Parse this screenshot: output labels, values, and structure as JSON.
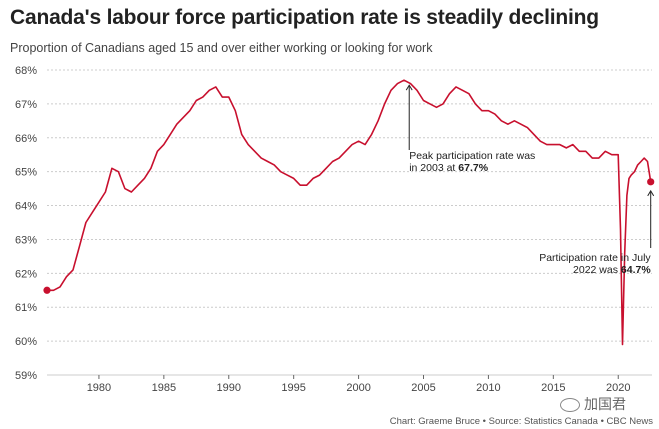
{
  "title": "Canada's labour force participation rate is steadily declining",
  "subtitle": "Proportion of Canadians aged 15 and over either working or looking for work",
  "credit": "Chart: Graeme Bruce • Source: Statistics Canada • CBC News",
  "watermark": "加国君",
  "colors": {
    "line": "#c8102e",
    "grid": "#cccccc",
    "text": "#222222"
  },
  "chart_data": {
    "type": "line",
    "title": "Canada's labour force participation rate is steadily declining",
    "subtitle": "Proportion of Canadians aged 15 and over either working or looking for work",
    "xlabel": "",
    "ylabel": "",
    "xlim": [
      1976,
      2022.6
    ],
    "ylim": [
      59,
      68
    ],
    "grid": "horizontal dashed",
    "x_ticks": [
      "1980",
      "1985",
      "1990",
      "1995",
      "2000",
      "2005",
      "2010",
      "2015",
      "2020"
    ],
    "y_ticks": [
      "59%",
      "60%",
      "61%",
      "62%",
      "63%",
      "64%",
      "65%",
      "66%",
      "67%",
      "68%"
    ],
    "series": [
      {
        "name": "",
        "color": "#c8102e",
        "x": [
          1976.0,
          1976.5,
          1977.0,
          1977.5,
          1978.0,
          1978.5,
          1979.0,
          1979.5,
          1980.0,
          1980.5,
          1981.0,
          1981.5,
          1982.0,
          1982.5,
          1983.0,
          1983.5,
          1984.0,
          1984.5,
          1985.0,
          1985.5,
          1986.0,
          1986.5,
          1987.0,
          1987.5,
          1988.0,
          1988.5,
          1989.0,
          1989.5,
          1990.0,
          1990.5,
          1991.0,
          1991.5,
          1992.0,
          1992.5,
          1993.0,
          1993.5,
          1994.0,
          1994.5,
          1995.0,
          1995.5,
          1996.0,
          1996.5,
          1997.0,
          1997.5,
          1998.0,
          1998.5,
          1999.0,
          1999.5,
          2000.0,
          2000.5,
          2001.0,
          2001.5,
          2002.0,
          2002.5,
          2003.0,
          2003.5,
          2004.0,
          2004.5,
          2005.0,
          2005.5,
          2006.0,
          2006.5,
          2007.0,
          2007.5,
          2008.0,
          2008.5,
          2009.0,
          2009.5,
          2010.0,
          2010.5,
          2011.0,
          2011.5,
          2012.0,
          2012.5,
          2013.0,
          2013.5,
          2014.0,
          2014.5,
          2015.0,
          2015.5,
          2016.0,
          2016.5,
          2017.0,
          2017.5,
          2018.0,
          2018.5,
          2019.0,
          2019.5,
          2020.0,
          2020.17,
          2020.33,
          2020.5,
          2020.67,
          2020.83,
          2021.0,
          2021.25,
          2021.5,
          2021.75,
          2022.0,
          2022.25,
          2022.5
        ],
        "y": [
          61.5,
          61.5,
          61.6,
          61.9,
          62.1,
          62.8,
          63.5,
          63.8,
          64.1,
          64.4,
          65.1,
          65.0,
          64.5,
          64.4,
          64.6,
          64.8,
          65.1,
          65.6,
          65.8,
          66.1,
          66.4,
          66.6,
          66.8,
          67.1,
          67.2,
          67.4,
          67.5,
          67.2,
          67.2,
          66.8,
          66.1,
          65.8,
          65.6,
          65.4,
          65.3,
          65.2,
          65.0,
          64.9,
          64.8,
          64.6,
          64.6,
          64.8,
          64.9,
          65.1,
          65.3,
          65.4,
          65.6,
          65.8,
          65.9,
          65.8,
          66.1,
          66.5,
          67.0,
          67.4,
          67.6,
          67.7,
          67.6,
          67.4,
          67.1,
          67.0,
          66.9,
          67.0,
          67.3,
          67.5,
          67.4,
          67.3,
          67.0,
          66.8,
          66.8,
          66.7,
          66.5,
          66.4,
          66.5,
          66.4,
          66.3,
          66.1,
          65.9,
          65.8,
          65.8,
          65.8,
          65.7,
          65.8,
          65.6,
          65.6,
          65.4,
          65.4,
          65.6,
          65.5,
          65.5,
          63.3,
          59.9,
          62.6,
          64.3,
          64.8,
          64.9,
          65.0,
          65.2,
          65.3,
          65.4,
          65.3,
          64.7
        ]
      }
    ],
    "annotations": [
      {
        "text_1": "Peak participation rate was",
        "text_2": "in 2003 at ",
        "value": "67.7%",
        "x": 2003.9,
        "y": 67.7
      },
      {
        "text_1": "Participation rate in July",
        "text_2": "2022 was ",
        "value": "64.7%",
        "x": 2022.5,
        "y": 64.7
      }
    ],
    "markers": [
      {
        "x": 1976.0,
        "y": 61.5
      },
      {
        "x": 2022.5,
        "y": 64.7
      }
    ]
  }
}
